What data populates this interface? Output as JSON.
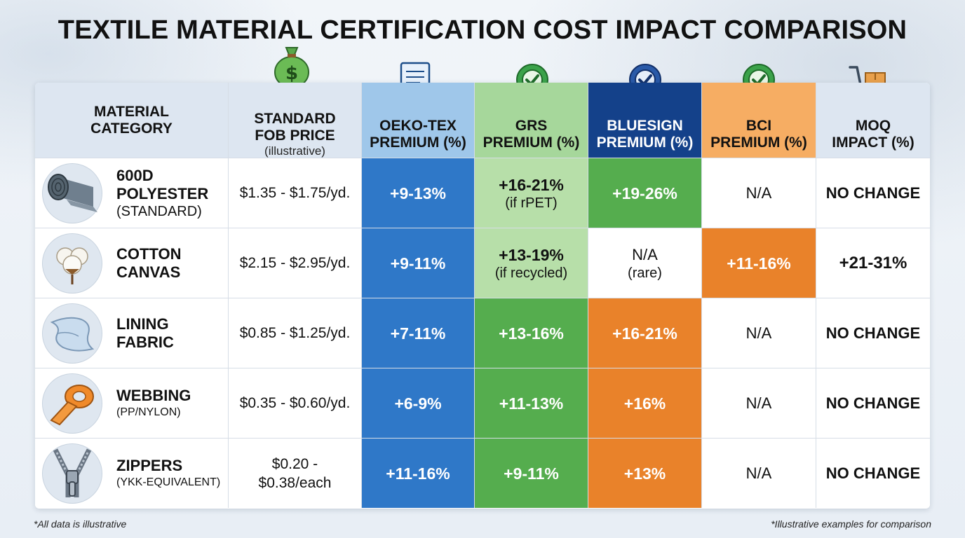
{
  "title": "TEXTILE MATERIAL CERTIFICATION COST IMPACT COMPARISON",
  "colors": {
    "oeko_header": "#9fc7ea",
    "grs_header": "#a6d79b",
    "bluesign_header": "#14418a",
    "bci_header": "#f6ad63",
    "blue_cell": "#2f78c8",
    "green_cell": "#55ad4e",
    "orange_cell": "#e9822a"
  },
  "headers": {
    "category": [
      "MATERIAL",
      "CATEGORY"
    ],
    "fob": [
      "STANDARD",
      "FOB PRICE"
    ],
    "fob_sub": "(illustrative)",
    "oeko": [
      "OEKO-TEX",
      "PREMIUM (%)"
    ],
    "grs": [
      "GRS",
      "PREMIUM (%)"
    ],
    "bluesign": [
      "BLUESIGN",
      "PREMIUM (%)"
    ],
    "bci": [
      "BCI",
      "PREMIUM (%)"
    ],
    "moq": [
      "MOQ",
      "IMPACT (%)"
    ]
  },
  "header_icons": {
    "fob": "money-bag-icon",
    "oeko": "certificate-icon",
    "grs": "rosette-check-icon",
    "bluesign": "rosette-check-icon",
    "bci": "rosette-check-icon",
    "moq": "hand-truck-box-icon"
  },
  "rows": [
    {
      "icon": "fabric-roll-icon",
      "name": [
        "600D",
        "POLYESTER"
      ],
      "sub": "(STANDARD)",
      "fob": [
        "$1.35 - $1.75/yd."
      ],
      "oeko": {
        "value": "+9-13%",
        "sub": ""
      },
      "grs": {
        "value": "+16-21%",
        "sub": "(if rPET)"
      },
      "bluesign": {
        "value": "+19-26%",
        "sub": ""
      },
      "bci": {
        "value": "N/A",
        "sub": ""
      },
      "moq": "NO CHANGE"
    },
    {
      "icon": "cotton-boll-icon",
      "name": [
        "COTTON",
        "CANVAS"
      ],
      "sub": "",
      "fob": [
        "$2.15 - $2.95/yd."
      ],
      "oeko": {
        "value": "+9-11%",
        "sub": ""
      },
      "grs": {
        "value": "+13-19%",
        "sub": "(if recycled)"
      },
      "bluesign": {
        "value": "N/A",
        "sub": "(rare)"
      },
      "bci": {
        "value": "+11-16%",
        "sub": ""
      },
      "moq": "+21-31%"
    },
    {
      "icon": "lining-fabric-icon",
      "name": [
        "LINING",
        "FABRIC"
      ],
      "sub": "",
      "fob": [
        "$0.85 - $1.25/yd."
      ],
      "oeko": {
        "value": "+7-11%",
        "sub": ""
      },
      "grs": {
        "value": "+13-16%",
        "sub": ""
      },
      "bluesign": {
        "value": "+16-21%",
        "sub": ""
      },
      "bci": {
        "value": "N/A",
        "sub": ""
      },
      "moq": "NO CHANGE"
    },
    {
      "icon": "webbing-roll-icon",
      "name": [
        "WEBBING"
      ],
      "sub": "(PP/NYLON)",
      "fob": [
        "$0.35 - $0.60/yd."
      ],
      "oeko": {
        "value": "+6-9%",
        "sub": ""
      },
      "grs": {
        "value": "+11-13%",
        "sub": ""
      },
      "bluesign": {
        "value": "+16%",
        "sub": ""
      },
      "bci": {
        "value": "N/A",
        "sub": ""
      },
      "moq": "NO CHANGE"
    },
    {
      "icon": "zipper-icon",
      "name": [
        "ZIPPERS"
      ],
      "sub": "(YKK-EQUIVALENT)",
      "fob": [
        "$0.20 -",
        "$0.38/each"
      ],
      "oeko": {
        "value": "+11-16%",
        "sub": ""
      },
      "grs": {
        "value": "+9-11%",
        "sub": ""
      },
      "bluesign": {
        "value": "+13%",
        "sub": ""
      },
      "bci": {
        "value": "N/A",
        "sub": ""
      },
      "moq": "NO CHANGE"
    }
  ],
  "footnote_left": "*All data is illustrative",
  "footnote_right": "*Illustrative examples for comparison"
}
